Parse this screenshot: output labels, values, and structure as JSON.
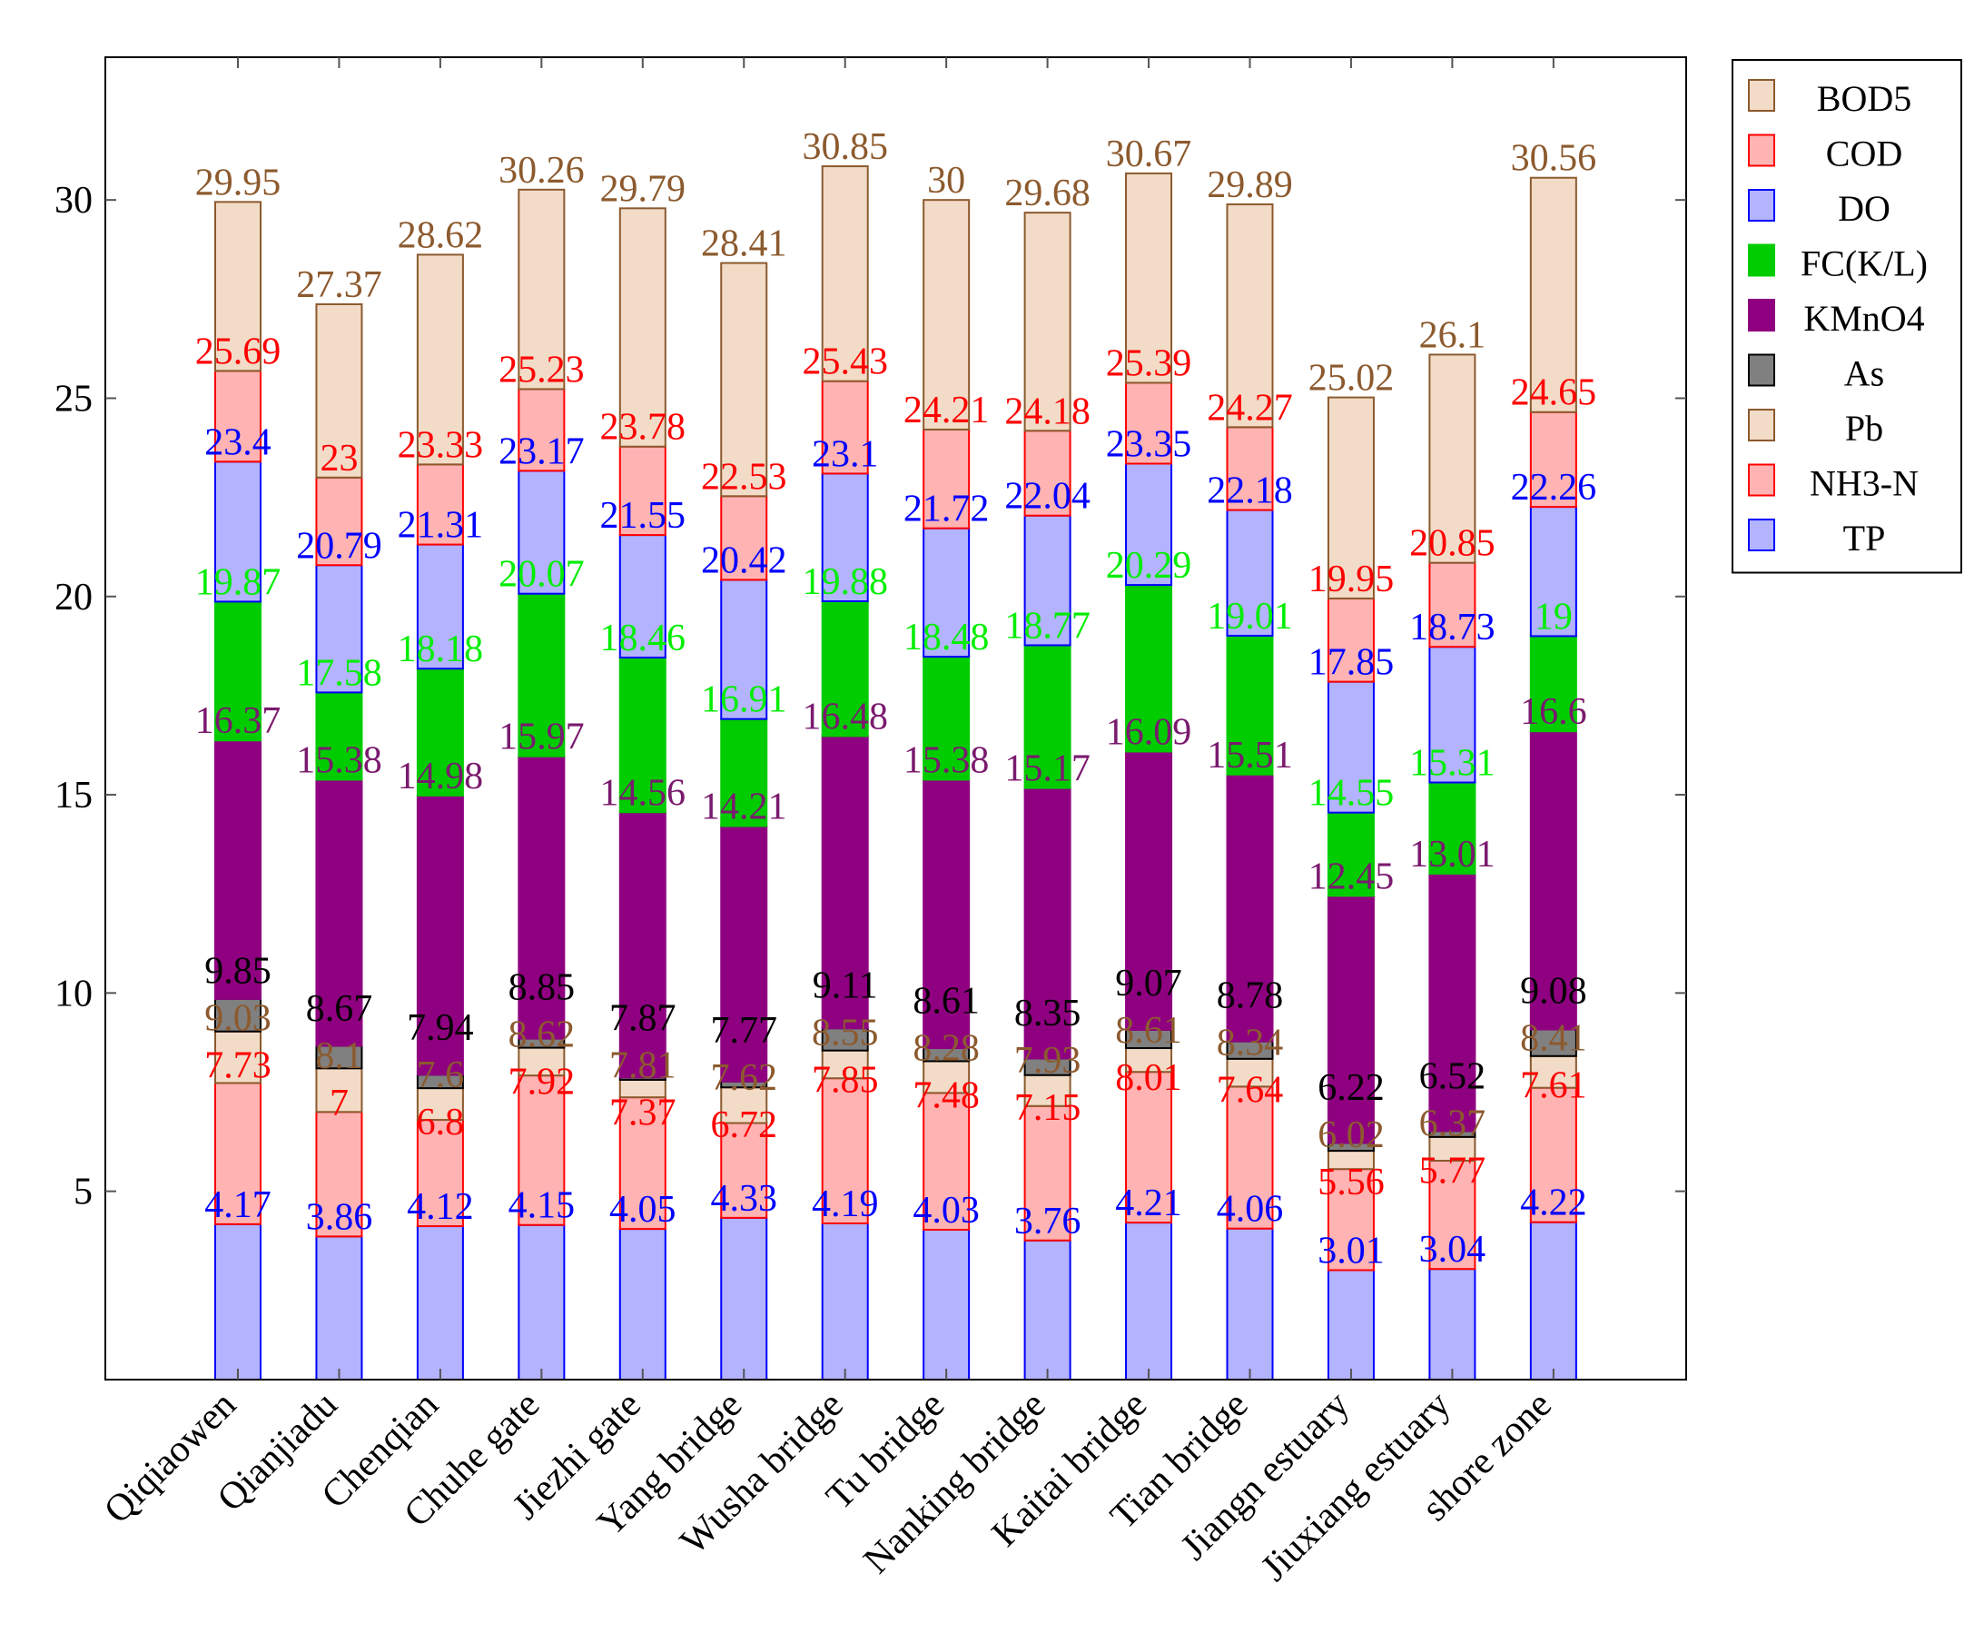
{
  "chart_data": {
    "type": "bar",
    "stacked": true,
    "label_mode": "cumulative",
    "title": "",
    "xlabel": "",
    "ylabel": "",
    "ylim": [
      0.25,
      33.6
    ],
    "yticks": [
      5,
      10,
      15,
      20,
      25,
      30
    ],
    "legend_position": "outside-right-top",
    "categories": [
      "Qiqiaowen",
      "Qianjiadu",
      "Chenqian",
      "Chuhe gate",
      "Jiezhi gate",
      "Yang bridge",
      "Wusha bridge",
      "Tu bridge",
      "Nanking bridge",
      "Kaitai bridge",
      "Tian bridge",
      "Jiangn estuary",
      "Jiuxiang estuary",
      "shore zone"
    ],
    "series": [
      {
        "name": "TP",
        "fill": "#b3b3ff",
        "stroke": "#0000ff",
        "label": "#0000ff",
        "cumulative": [
          4.17,
          3.86,
          4.12,
          4.15,
          4.05,
          4.33,
          4.19,
          4.03,
          3.76,
          4.21,
          4.06,
          3.01,
          3.04,
          4.22
        ]
      },
      {
        "name": "NH3-N",
        "fill": "#ffb3b3",
        "stroke": "#ff0000",
        "label": "#ff0000",
        "cumulative": [
          7.73,
          7,
          6.8,
          7.92,
          7.37,
          6.72,
          7.85,
          7.48,
          7.15,
          8.01,
          7.64,
          5.56,
          5.77,
          7.61
        ]
      },
      {
        "name": "Pb",
        "fill": "#f2dcc8",
        "stroke": "#8c5a2e",
        "label": "#8c5a2e",
        "cumulative": [
          9.03,
          8.1,
          7.6,
          8.62,
          7.81,
          7.62,
          8.55,
          8.28,
          7.93,
          8.61,
          8.34,
          6.02,
          6.37,
          8.41
        ]
      },
      {
        "name": "As",
        "fill": "#808080",
        "stroke": "#000000",
        "label": "#000000",
        "cumulative": [
          9.85,
          8.67,
          7.94,
          8.85,
          7.87,
          7.77,
          9.11,
          8.61,
          8.35,
          9.07,
          8.78,
          6.22,
          6.52,
          9.08
        ]
      },
      {
        "name": "KMnO4",
        "fill": "#8f0080",
        "stroke": "#8f0080",
        "label": "#7a1a6e",
        "cumulative": [
          16.37,
          15.38,
          14.98,
          15.97,
          14.56,
          14.21,
          16.48,
          15.38,
          15.17,
          16.09,
          15.51,
          12.45,
          13.01,
          16.6
        ]
      },
      {
        "name": "FC(K/L)",
        "fill": "#00cc00",
        "stroke": "#00cc00",
        "label": "#00ee00",
        "cumulative": [
          19.87,
          17.58,
          18.18,
          20.07,
          18.46,
          16.91,
          19.88,
          18.48,
          18.77,
          20.29,
          19.01,
          14.55,
          15.31,
          19
        ]
      },
      {
        "name": "DO",
        "fill": "#b3b3ff",
        "stroke": "#0000ff",
        "label": "#0000ff",
        "cumulative": [
          23.4,
          20.79,
          21.31,
          23.17,
          21.55,
          20.42,
          23.1,
          21.72,
          22.04,
          23.35,
          22.18,
          17.85,
          18.73,
          22.26
        ]
      },
      {
        "name": "COD",
        "fill": "#ffb3b3",
        "stroke": "#ff0000",
        "label": "#ff0000",
        "cumulative": [
          25.69,
          23,
          23.33,
          25.23,
          23.78,
          22.53,
          25.43,
          24.21,
          24.18,
          25.39,
          24.27,
          19.95,
          20.85,
          24.65
        ]
      },
      {
        "name": "BOD5",
        "fill": "#f2dcc8",
        "stroke": "#8c5a2e",
        "label": "#8c5a2e",
        "cumulative": [
          29.95,
          27.37,
          28.62,
          30.26,
          29.79,
          28.41,
          30.85,
          30,
          29.68,
          30.67,
          29.89,
          25.02,
          26.1,
          30.56
        ]
      }
    ]
  }
}
